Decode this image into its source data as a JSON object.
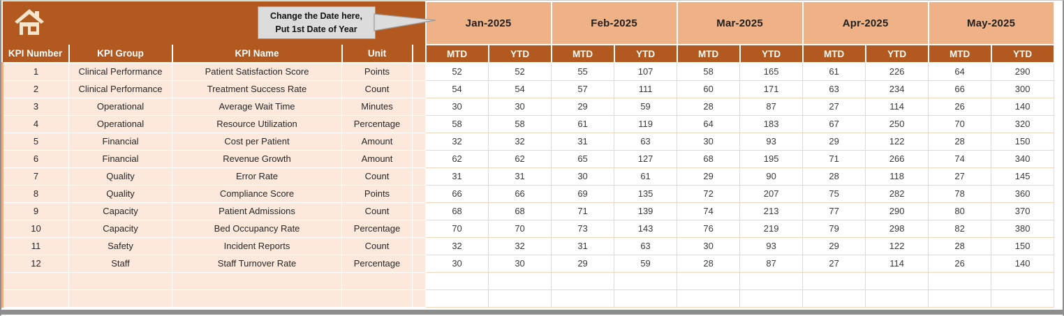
{
  "callout": {
    "line1": "Change the Date here,",
    "line2": "Put 1st Date of Year"
  },
  "header": {
    "months": [
      "Jan-2025",
      "Feb-2025",
      "Mar-2025",
      "Apr-2025",
      "May-2025"
    ],
    "sub": [
      "MTD",
      "YTD"
    ]
  },
  "table": {
    "columns": [
      "KPI Number",
      "KPI Group",
      "KPI Name",
      "Unit"
    ],
    "rows": [
      {
        "num": "1",
        "group": "Clinical Performance",
        "name": "Patient Satisfaction Score",
        "unit": "Points",
        "values": [
          52,
          52,
          55,
          107,
          58,
          165,
          61,
          226,
          64,
          290
        ]
      },
      {
        "num": "2",
        "group": "Clinical Performance",
        "name": "Treatment Success Rate",
        "unit": "Count",
        "values": [
          54,
          54,
          57,
          111,
          60,
          171,
          63,
          234,
          66,
          300
        ]
      },
      {
        "num": "3",
        "group": "Operational",
        "name": "Average Wait Time",
        "unit": "Minutes",
        "values": [
          30,
          30,
          29,
          59,
          28,
          87,
          27,
          114,
          26,
          140
        ]
      },
      {
        "num": "4",
        "group": "Operational",
        "name": "Resource Utilization",
        "unit": "Percentage",
        "values": [
          58,
          58,
          61,
          119,
          64,
          183,
          67,
          250,
          70,
          320
        ]
      },
      {
        "num": "5",
        "group": "Financial",
        "name": "Cost per Patient",
        "unit": "Amount",
        "values": [
          32,
          32,
          31,
          63,
          30,
          93,
          29,
          122,
          28,
          150
        ]
      },
      {
        "num": "6",
        "group": "Financial",
        "name": "Revenue Growth",
        "unit": "Amount",
        "values": [
          62,
          62,
          65,
          127,
          68,
          195,
          71,
          266,
          74,
          340
        ]
      },
      {
        "num": "7",
        "group": "Quality",
        "name": "Error Rate",
        "unit": "Count",
        "values": [
          31,
          31,
          30,
          61,
          29,
          90,
          28,
          118,
          27,
          145
        ]
      },
      {
        "num": "8",
        "group": "Quality",
        "name": "Compliance Score",
        "unit": "Points",
        "values": [
          66,
          66,
          69,
          135,
          72,
          207,
          75,
          282,
          78,
          360
        ]
      },
      {
        "num": "9",
        "group": "Capacity",
        "name": "Patient Admissions",
        "unit": "Count",
        "values": [
          68,
          68,
          71,
          139,
          74,
          213,
          77,
          290,
          80,
          370
        ]
      },
      {
        "num": "10",
        "group": "Capacity",
        "name": "Bed Occupancy Rate",
        "unit": "Percentage",
        "values": [
          70,
          70,
          73,
          143,
          76,
          219,
          79,
          298,
          82,
          380
        ]
      },
      {
        "num": "11",
        "group": "Safety",
        "name": "Incident Reports",
        "unit": "Count",
        "values": [
          32,
          32,
          31,
          63,
          30,
          93,
          29,
          122,
          28,
          150
        ]
      },
      {
        "num": "12",
        "group": "Staff",
        "name": "Staff Turnover Rate",
        "unit": "Percentage",
        "values": [
          30,
          30,
          29,
          59,
          28,
          87,
          27,
          114,
          26,
          140
        ]
      }
    ],
    "empty_rows": 2
  },
  "icons": {
    "home": "home-icon"
  },
  "colors": {
    "band_brown": "#B1591E",
    "month_peach": "#EFB287",
    "left_row_bg": "#FCE9DC",
    "value_border": "#F0D7BB",
    "callout_bg": "#DCDCDC",
    "callout_border": "#9B9B9B",
    "scrollbar_gray": "#8E8E8E",
    "header_text": "#FFFFFF"
  }
}
